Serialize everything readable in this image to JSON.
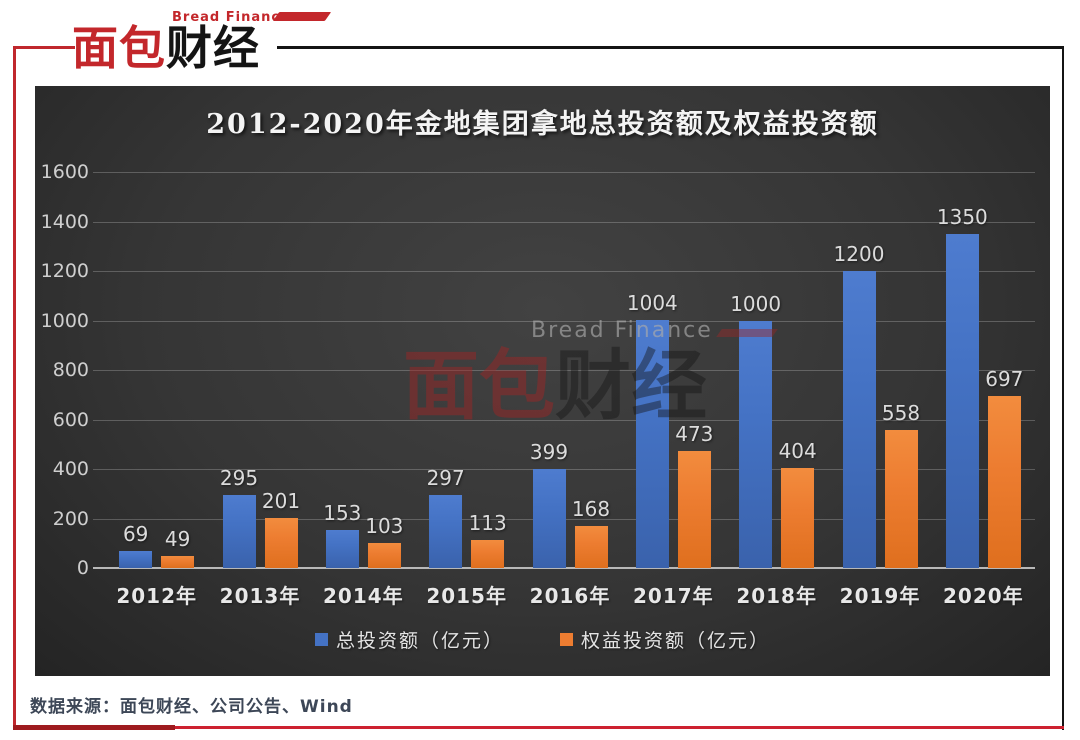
{
  "logo": {
    "brand_en": "Bread Finance",
    "brand_cn_red": "面包",
    "brand_cn_black": "财经"
  },
  "watermark": {
    "en": "Bread Finance",
    "cn_red": "面包",
    "cn_black": "财经"
  },
  "source_note": "数据来源：面包财经、公司公告、Wind",
  "colors": {
    "series_blue": "#4472C4",
    "series_orange": "#ED7D31",
    "frame_red": "#C0272D",
    "frame_black": "#141414",
    "panel_background": "#333333"
  },
  "chart_data": {
    "type": "bar",
    "title": "2012-2020年金地集团拿地总投资额及权益投资额",
    "categories": [
      "2012年",
      "2013年",
      "2014年",
      "2015年",
      "2016年",
      "2017年",
      "2018年",
      "2019年",
      "2020年"
    ],
    "series": [
      {
        "name": "总投资额（亿元）",
        "color": "#4472C4",
        "values": [
          69,
          295,
          153,
          297,
          399,
          1004,
          1000,
          1200,
          1350
        ]
      },
      {
        "name": "权益投资额（亿元）",
        "color": "#ED7D31",
        "values": [
          49,
          201,
          103,
          113,
          168,
          473,
          404,
          558,
          697
        ]
      }
    ],
    "xlabel": "",
    "ylabel": "",
    "ylim": [
      0,
      1600
    ],
    "yticks": [
      0,
      200,
      400,
      600,
      800,
      1000,
      1200,
      1400,
      1600
    ],
    "grid": true,
    "legend_position": "bottom"
  }
}
